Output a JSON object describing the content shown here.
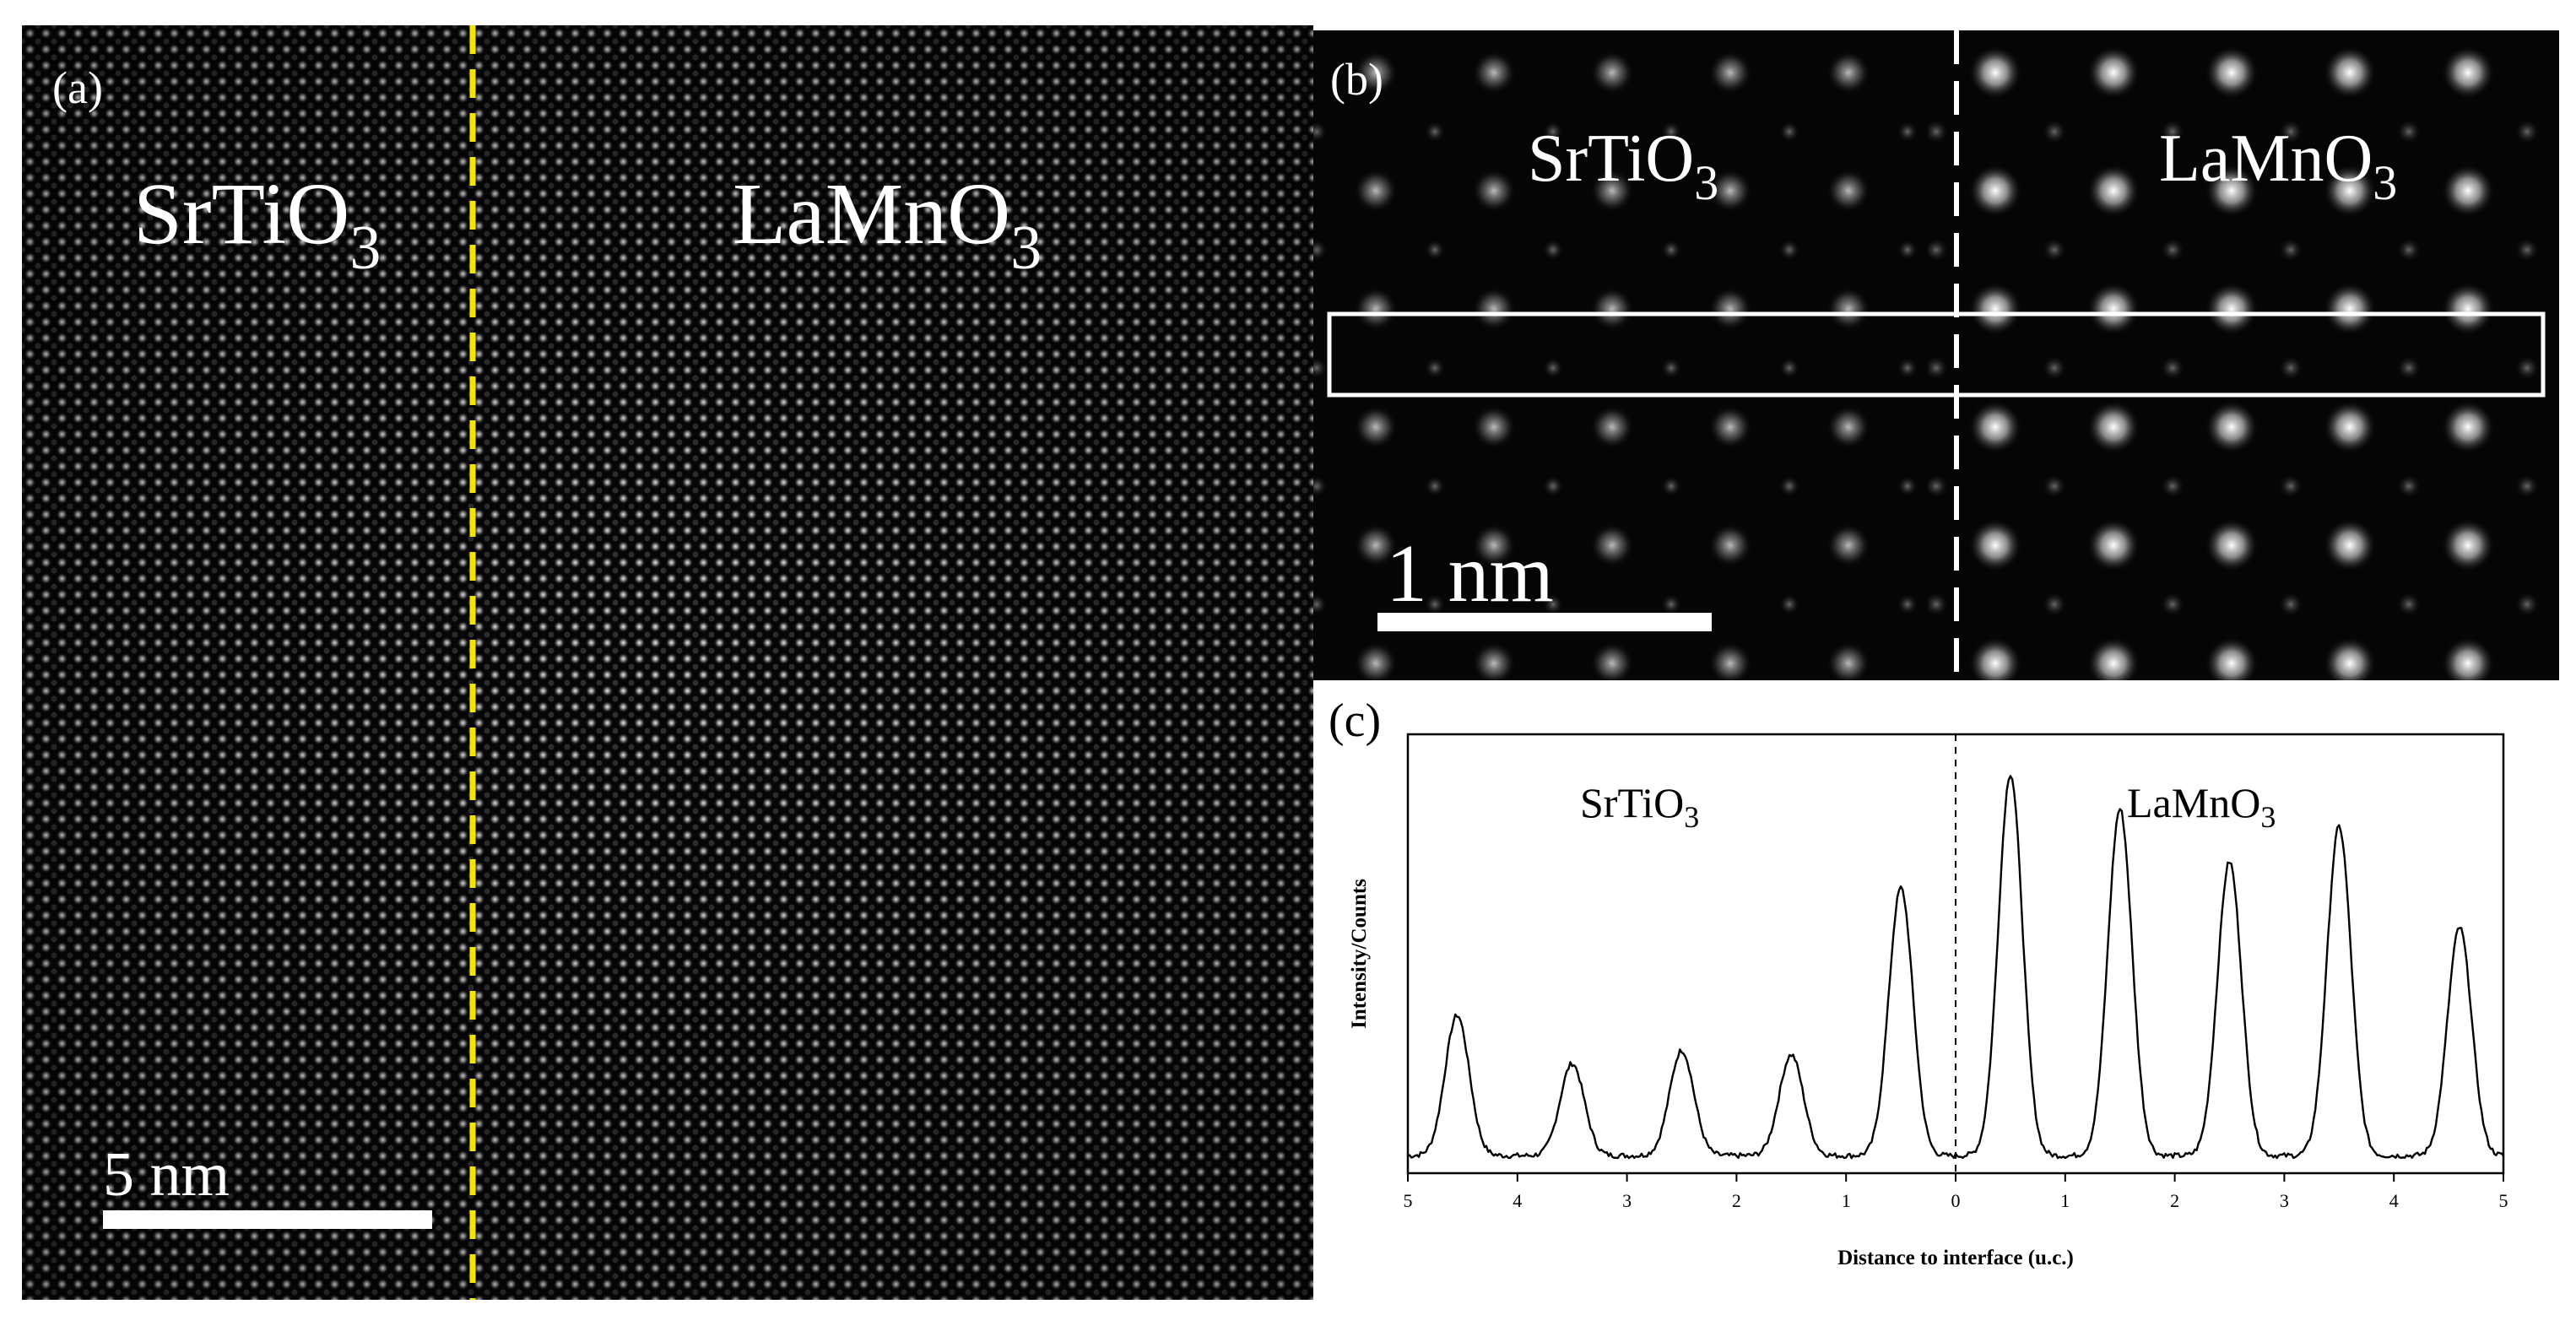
{
  "panel_a": {
    "label": "(a)",
    "left_material": "SrTiO",
    "left_sub": "3",
    "right_material": "LaMnO",
    "right_sub": "3",
    "scale_bar": "5 nm",
    "interface_color": "#f2e600"
  },
  "panel_b": {
    "label": "(b)",
    "left_material": "SrTiO",
    "left_sub": "3",
    "right_material": "LaMnO",
    "right_sub": "3",
    "scale_bar": "1 nm"
  },
  "panel_c": {
    "label": "(c)",
    "left_material": "SrTiO",
    "left_sub": "3",
    "right_material": "LaMnO",
    "right_sub": "3"
  },
  "chart_data": {
    "type": "line",
    "title": "",
    "xlabel": "Distance to interface (u.c.)",
    "ylabel": "Intensity/Counts",
    "xlim": [
      -5,
      5
    ],
    "ylim": [
      0,
      1
    ],
    "x_ticks": [
      -5,
      -4,
      -3,
      -2,
      -1,
      0,
      1,
      2,
      3,
      4,
      5
    ],
    "x_tick_labels": [
      "5",
      "4",
      "3",
      "2",
      "1",
      "0",
      "1",
      "2",
      "3",
      "4",
      "5"
    ],
    "interface_x": 0,
    "grid": false,
    "series": [
      {
        "peaks": [
          {
            "x": -4.55,
            "height": 0.36
          },
          {
            "x": -3.5,
            "height": 0.25
          },
          {
            "x": -2.5,
            "height": 0.28
          },
          {
            "x": -1.5,
            "height": 0.27
          },
          {
            "x": -0.5,
            "height": 0.65
          },
          {
            "x": 0.5,
            "height": 0.91
          },
          {
            "x": 1.5,
            "height": 0.83
          },
          {
            "x": 2.5,
            "height": 0.71
          },
          {
            "x": 3.5,
            "height": 0.79
          },
          {
            "x": 4.6,
            "height": 0.56
          }
        ],
        "baseline": 0.04
      }
    ]
  }
}
